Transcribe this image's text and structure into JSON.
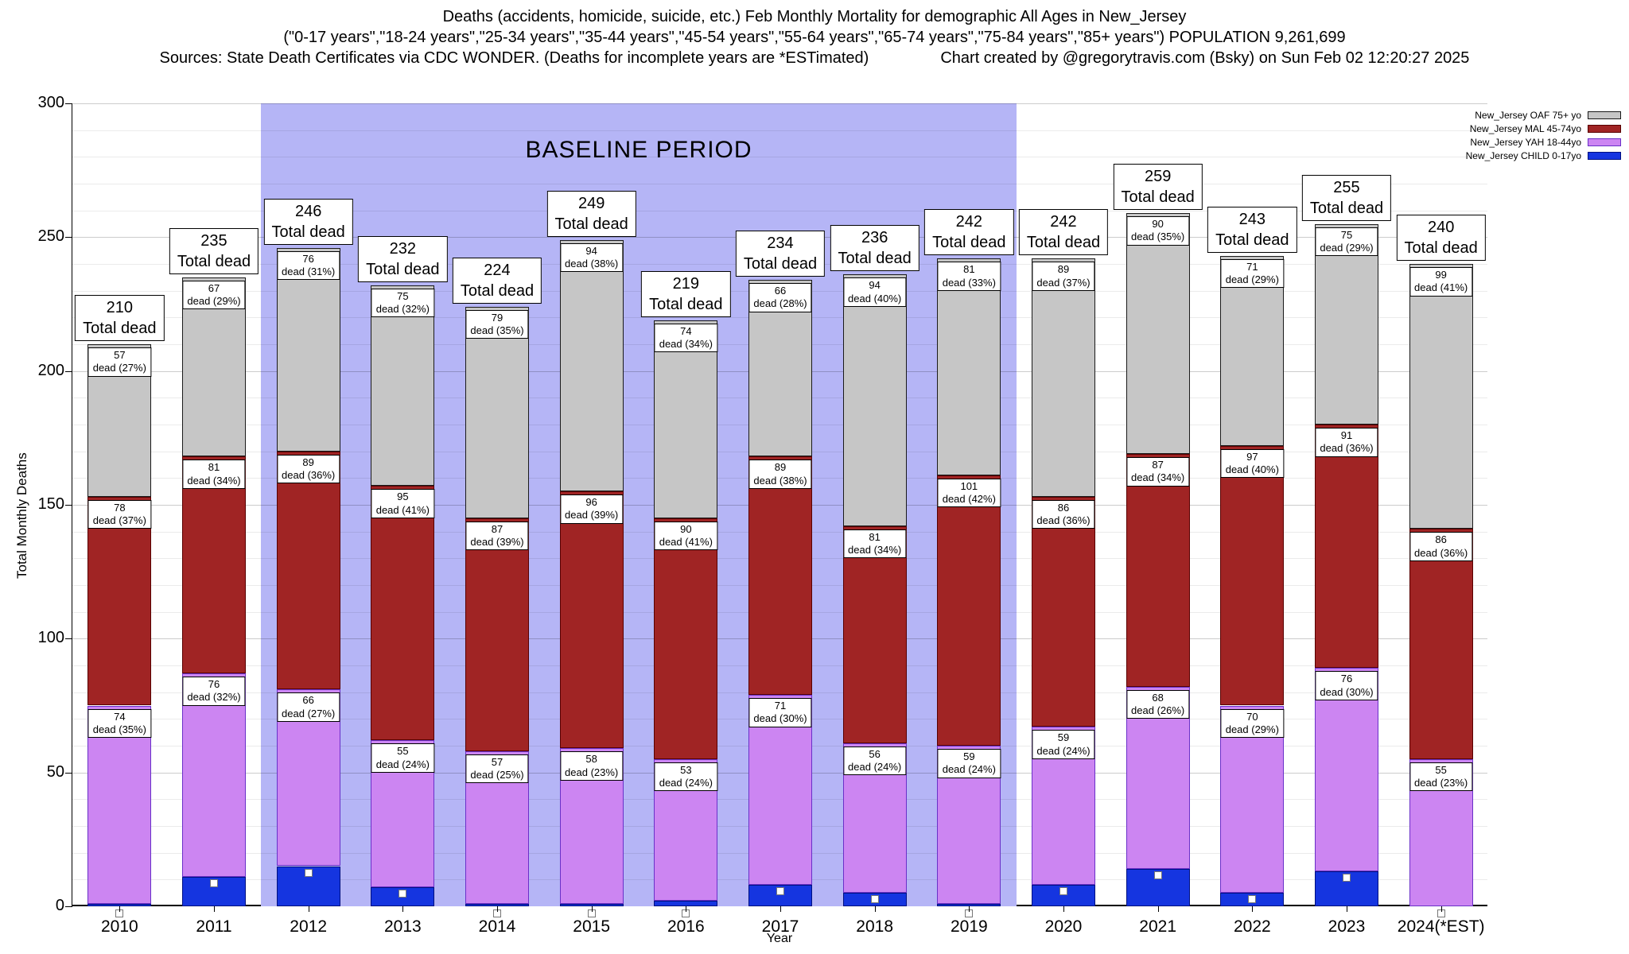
{
  "title": {
    "line1": "Deaths (accidents, homicide, suicide, etc.) Feb Monthly Mortality for demographic All Ages in New_Jersey",
    "line2": "(\"0-17 years\",\"18-24 years\",\"25-34 years\",\"35-44 years\",\"45-54 years\",\"55-64 years\",\"65-74 years\",\"75-84 years\",\"85+ years\") POPULATION 9,261,699",
    "line3a": "Sources: State Death Certificates via CDC WONDER. (Deaths for incomplete years are *ESTimated)",
    "line3b": "Chart created by @gregorytravis.com (Bsky) on Sun Feb 02 12:20:27 2025"
  },
  "chart_data": {
    "type": "bar",
    "stacked": true,
    "title": "Deaths (accidents, homicide, suicide, etc.) Feb Monthly Mortality for demographic All Ages in New_Jersey",
    "xlabel": "Year",
    "ylabel": "Total Monthly Deaths",
    "ylim": [
      0,
      300
    ],
    "yticks": [
      0,
      50,
      100,
      150,
      200,
      250,
      300
    ],
    "grid": true,
    "legend_position": "top-right",
    "total_label_suffix": "Total dead",
    "baseline_band": {
      "label": "BASELINE PERIOD",
      "from": "2012",
      "to": "2019",
      "color": "#b5b5f6"
    },
    "categories": [
      "2010",
      "2011",
      "2012",
      "2013",
      "2014",
      "2015",
      "2016",
      "2017",
      "2018",
      "2019",
      "2020",
      "2021",
      "2022",
      "2023",
      "2024(*EST)"
    ],
    "totals": [
      210,
      235,
      246,
      232,
      224,
      249,
      219,
      234,
      236,
      242,
      242,
      259,
      243,
      255,
      240
    ],
    "series": [
      {
        "name": "New_Jersey CHILD 0-17yo",
        "color": "#1535e0",
        "border": "#001080",
        "values": [
          1,
          11,
          15,
          7,
          1,
          1,
          2,
          8,
          5,
          1,
          8,
          14,
          5,
          13,
          0
        ]
      },
      {
        "name": "New_Jersey YAH 18-44yo",
        "color": "#cc85f2",
        "border": "#6a30c8",
        "values": [
          74,
          76,
          66,
          55,
          57,
          58,
          53,
          71,
          56,
          59,
          59,
          68,
          70,
          76,
          55
        ],
        "pct": [
          35,
          32,
          27,
          24,
          25,
          23,
          24,
          30,
          24,
          24,
          24,
          26,
          29,
          30,
          23
        ]
      },
      {
        "name": "New_Jersey MAL 45-74yo",
        "color": "#a02424",
        "border": "#580000",
        "values": [
          78,
          81,
          89,
          95,
          87,
          96,
          90,
          89,
          81,
          101,
          86,
          87,
          97,
          91,
          86
        ],
        "pct": [
          37,
          34,
          36,
          41,
          39,
          39,
          41,
          38,
          34,
          42,
          36,
          34,
          40,
          36,
          36
        ]
      },
      {
        "name": "New_Jersey OAF 75+ yo",
        "color": "#c6c6c6",
        "border": "#1a1a1a",
        "values": [
          57,
          67,
          76,
          75,
          79,
          94,
          74,
          66,
          94,
          81,
          89,
          90,
          71,
          75,
          99
        ],
        "pct": [
          27,
          29,
          31,
          32,
          35,
          38,
          34,
          28,
          40,
          33,
          37,
          35,
          29,
          29,
          41
        ]
      }
    ],
    "segment_label_word": "dead"
  },
  "legend": {
    "items": [
      {
        "label": "New_Jersey OAF 75+ yo",
        "color": "#c6c6c6",
        "border": "#1a1a1a"
      },
      {
        "label": "New_Jersey MAL 45-74yo",
        "color": "#a02424",
        "border": "#580000"
      },
      {
        "label": "New_Jersey YAH 18-44yo",
        "color": "#cc85f2",
        "border": "#6a30c8"
      },
      {
        "label": "New_Jersey CHILD 0-17yo",
        "color": "#1535e0",
        "border": "#001080"
      }
    ]
  }
}
